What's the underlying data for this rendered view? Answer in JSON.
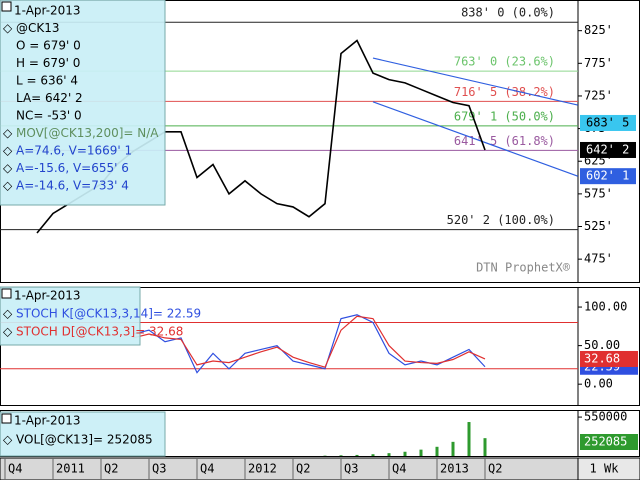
{
  "chart_data": [
    {
      "type": "line",
      "info": [
        {
          "text": "1-Apr-2013",
          "color": "#000000"
        },
        {
          "text": "@CK13",
          "color": "#000000"
        },
        {
          "text": "O = 679' 0",
          "color": "#000000"
        },
        {
          "text": "H = 679' 0",
          "color": "#000000"
        },
        {
          "text": "L = 636' 4",
          "color": "#000000"
        },
        {
          "text": "LA= 642' 2",
          "color": "#000000"
        },
        {
          "text": "NC= -53' 0",
          "color": "#000000"
        },
        {
          "text": "MOV[@CK13,200]= N/A",
          "color": "#5e8f5e"
        },
        {
          "text": "A=74.6, V=1669' 1",
          "color": "#2244cc"
        },
        {
          "text": "A=-15.6, V=655' 6",
          "color": "#2244cc"
        },
        {
          "text": "A=-14.6, V=733' 4",
          "color": "#2244cc"
        }
      ],
      "categories": [
        "Q4",
        null,
        null,
        "2011",
        null,
        null,
        "Q2",
        null,
        null,
        "Q3",
        null,
        null,
        "Q4",
        null,
        null,
        "2012",
        null,
        null,
        "Q2",
        null,
        null,
        "Q3",
        null,
        null,
        "Q4",
        null,
        null,
        "2013",
        null,
        null,
        "Q2",
        null,
        null
      ],
      "series": [
        {
          "color": "#000000",
          "values": [
            null,
            null,
            515,
            545,
            560,
            575,
            590,
            620,
            640,
            655,
            670,
            670,
            600,
            620,
            575,
            595,
            575,
            560,
            555,
            540,
            560,
            790,
            810,
            760,
            750,
            745,
            735,
            725,
            715,
            710,
            642.25,
            null,
            null
          ]
        }
      ],
      "ylim": [
        440,
        872
      ],
      "yticks": [
        {
          "value": 475,
          "label": "475'"
        },
        {
          "value": 525,
          "label": "525'"
        },
        {
          "value": 575,
          "label": "575'"
        },
        {
          "value": 625,
          "label": "625'"
        },
        {
          "value": 675,
          "label": "675'"
        },
        {
          "value": 725,
          "label": "725'"
        },
        {
          "value": 775,
          "label": "775'"
        },
        {
          "value": 825,
          "label": "825'"
        }
      ],
      "fib_levels": [
        {
          "value": 838,
          "label": "838' 0 (0.0%)",
          "color": "#222222"
        },
        {
          "value": 763,
          "label": "763' 0 (23.6%)",
          "color": "#8fd88f"
        },
        {
          "value": 716.625,
          "label": "716' 5 (38.2%)",
          "color": "#e05050"
        },
        {
          "value": 679.125,
          "label": "679' 1 (50.0%)",
          "color": "#4caf4c"
        },
        {
          "value": 641.625,
          "label": "641' 5 (61.8%)",
          "color": "#9a5aa0"
        },
        {
          "value": 520.25,
          "label": "520' 2 (100.0%)",
          "color": "#222222"
        }
      ],
      "channel": {
        "color": "#2f5fe0",
        "start": 23,
        "end": 35.8,
        "upper": [
          783,
          711
        ],
        "lower": [
          716,
          602.125
        ]
      },
      "price_boxes": [
        {
          "value": 683.625,
          "label": "683' 5",
          "color": "#39c6ef",
          "text_color": "#000000"
        },
        {
          "value": 642.25,
          "label": "642' 2",
          "color": "#000000",
          "text_color": "#ffffff"
        },
        {
          "value": 602.125,
          "label": "602' 1",
          "color": "#2f5fe0",
          "text_color": "#ffffff"
        }
      ],
      "watermark": "DTN ProphetX®"
    },
    {
      "type": "line",
      "title": "1-Apr-2013",
      "series": [
        {
          "name": "STOCH K[@CK13,3,14]= 22.59",
          "color": "#2f4fe0",
          "values": [
            null,
            null,
            null,
            null,
            null,
            null,
            null,
            null,
            65,
            70,
            55,
            60,
            15,
            40,
            20,
            40,
            45,
            50,
            30,
            25,
            20,
            85,
            90,
            80,
            40,
            25,
            30,
            25,
            35,
            45,
            22.59,
            null,
            null
          ]
        },
        {
          "name": "STOCH D[@CK13,3]= 32.68",
          "color": "#e03030",
          "values": [
            null,
            null,
            null,
            null,
            null,
            null,
            null,
            null,
            60,
            65,
            60,
            58,
            25,
            30,
            28,
            35,
            42,
            48,
            35,
            28,
            22,
            70,
            88,
            85,
            50,
            30,
            28,
            27,
            32,
            42,
            32.68,
            null,
            null
          ]
        }
      ],
      "ref_lines": [
        80,
        20
      ],
      "ref_color": "#e03030",
      "ylim": [
        -27,
        126
      ],
      "yticks": [
        {
          "value": 0,
          "label": "0.00"
        },
        {
          "value": 50,
          "label": "50.00"
        },
        {
          "value": 100,
          "label": "100.00"
        }
      ]
    },
    {
      "type": "bar",
      "title": "1-Apr-2013",
      "series": [
        {
          "name": "VOL[@CK13]= 252085",
          "color": "#2e9a2e",
          "values": [
            null,
            null,
            null,
            null,
            null,
            null,
            null,
            null,
            null,
            null,
            null,
            null,
            null,
            null,
            null,
            null,
            null,
            null,
            null,
            null,
            5000,
            10000,
            15000,
            25000,
            40000,
            60000,
            90000,
            130000,
            200000,
            480000,
            252085,
            null,
            null
          ]
        }
      ],
      "ylim": [
        0,
        650000
      ],
      "yticks": [
        550000
      ],
      "period": "1 Wk"
    }
  ]
}
